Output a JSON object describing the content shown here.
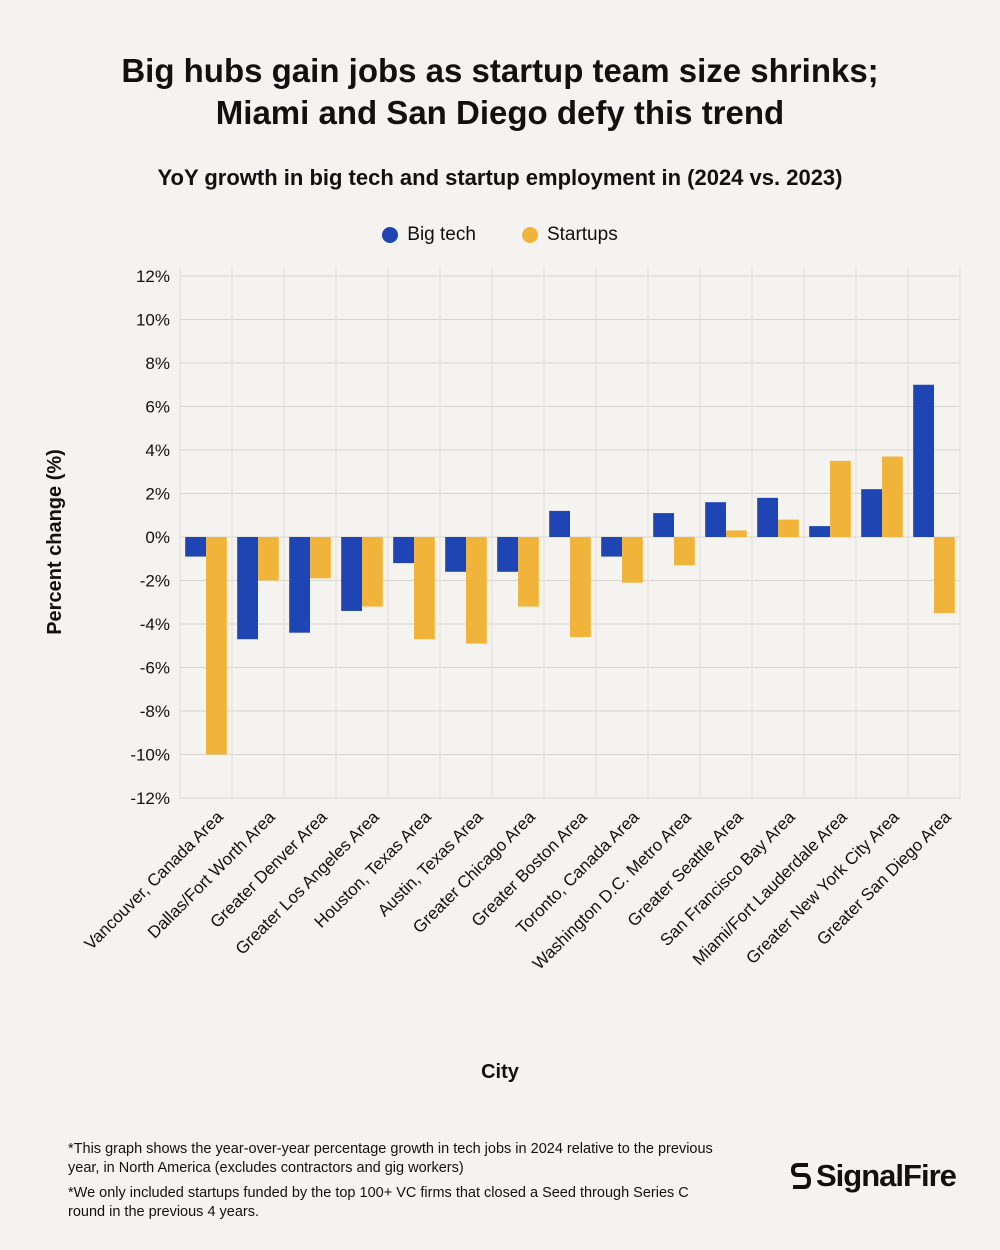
{
  "title_lines": [
    "Big hubs gain jobs as startup team size shrinks;",
    "Miami and San Diego defy this trend"
  ],
  "subtitle": "YoY growth in big tech and startup employment in (2024 vs. 2023)",
  "legend": [
    {
      "label": "Big tech",
      "color": "#1f45b4"
    },
    {
      "label": "Startups",
      "color": "#f0b43a"
    }
  ],
  "chart_data": {
    "type": "bar",
    "title": "Big hubs gain jobs as startup team size shrinks; Miami and San Diego defy this trend",
    "subtitle": "YoY growth in big tech and startup employment in (2024 vs. 2023)",
    "xlabel": "City",
    "ylabel": "Percent change (%)",
    "ylim": [
      -12,
      12
    ],
    "yticks": [
      12,
      10,
      8,
      6,
      4,
      2,
      0,
      -2,
      -4,
      -6,
      -8,
      -10,
      -12
    ],
    "ytick_labels": [
      "12%",
      "10%",
      "8%",
      "6%",
      "4%",
      "2%",
      "0%",
      "-2%",
      "-4%",
      "-6%",
      "-8%",
      "-10%",
      "-12%"
    ],
    "grid": true,
    "legend_position": "top-center",
    "categories": [
      "Vancouver, Canada Area",
      "Dallas/Fort Worth Area",
      "Greater Denver Area",
      "Greater Los Angeles Area",
      "Houston, Texas Area",
      "Austin, Texas Area",
      "Greater Chicago Area",
      "Greater Boston Area",
      "Toronto, Canada Area",
      "Washington D.C. Metro Area",
      "Greater Seattle Area",
      "San Francisco Bay Area",
      "Miami/Fort Lauderdale Area",
      "Greater New York City Area",
      "Greater San Diego Area"
    ],
    "series": [
      {
        "name": "Big tech",
        "color": "#1f45b4",
        "values": [
          -0.9,
          -4.7,
          -4.4,
          -3.4,
          -1.2,
          -1.6,
          -1.6,
          1.2,
          -0.9,
          1.1,
          1.6,
          1.8,
          0.5,
          2.2,
          7.0
        ]
      },
      {
        "name": "Startups",
        "color": "#f0b43a",
        "values": [
          -10.0,
          -2.0,
          -1.9,
          -3.2,
          -4.7,
          -4.9,
          -3.2,
          -4.6,
          -2.1,
          -1.3,
          0.3,
          0.8,
          3.5,
          3.7,
          -3.5
        ]
      }
    ]
  },
  "footnotes": [
    "*This graph shows the year-over-year percentage growth in tech jobs in 2024 relative to the previous year, in North America (excludes contractors and gig workers)",
    "*We only included startups funded by the top 100+ VC firms that closed a Seed through Series C round in the previous 4 years."
  ],
  "brand": "SignalFire"
}
